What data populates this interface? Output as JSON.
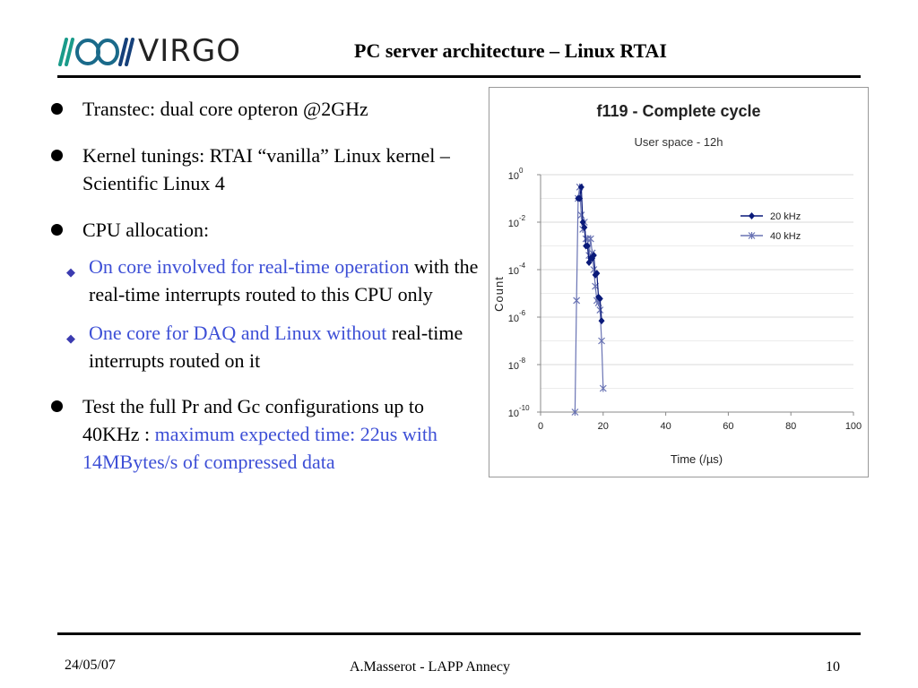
{
  "header": {
    "logo_text": "VIRGO",
    "title": "PC server architecture – Linux RTAI"
  },
  "bullets": {
    "b1": "Transtec: dual core opteron @2GHz",
    "b2": "Kernel tunings: RTAI “vanilla” Linux kernel – Scientific Linux 4",
    "b3": "CPU allocation:",
    "b3_sub1_blue": "On core involved for real-time operation",
    "b3_sub1_rest": " with the real-time interrupts routed to this CPU only",
    "b3_sub2_blue": "One core for DAQ and Linux without",
    "b3_sub2_rest": " real-time interrupts routed on it",
    "b4_black": "Test the full Pr and Gc configurations up to 40KHz : ",
    "b4_blue": "maximum expected time: 22us with 14MBytes/s of compressed data"
  },
  "footer": {
    "date": "24/05/07",
    "author": "A.Masserot - LAPP Annecy",
    "page": "10"
  },
  "colors": {
    "accent_text": "#3d4fd6",
    "series_20khz": "#0a1a7a",
    "series_40khz": "#6a74b4"
  },
  "chart_data": {
    "type": "line",
    "title": "f119 - Complete cycle",
    "subtitle": "User space - 12h",
    "xlabel": "Time (/µs)",
    "ylabel": "Count",
    "xlim": [
      0,
      100
    ],
    "ylim_log10": [
      -10,
      0
    ],
    "y_scale": "log",
    "grid": true,
    "legend_position": "top-right",
    "x_ticks": [
      "0",
      "20",
      "40",
      "60",
      "80",
      "100"
    ],
    "y_ticks": [
      {
        "base": "10",
        "exp": "0"
      },
      {
        "base": "10",
        "exp": "-2"
      },
      {
        "base": "10",
        "exp": "-4"
      },
      {
        "base": "10",
        "exp": "-6"
      },
      {
        "base": "10",
        "exp": "-8"
      },
      {
        "base": "10",
        "exp": "-10"
      }
    ],
    "series": [
      {
        "name": "20 kHz",
        "marker": "diamond",
        "x": [
          12,
          12.5,
          13,
          13.5,
          14,
          14.5,
          15,
          15.5,
          16,
          16.5,
          17,
          17.5,
          18,
          18.5,
          19,
          19.5
        ],
        "y": [
          0.1,
          0.1,
          0.3,
          0.01,
          0.006,
          0.001,
          0.001,
          0.0002,
          0.0003,
          0.0003,
          0.0004,
          6e-05,
          7e-05,
          7e-06,
          6e-06,
          7e-07
        ]
      },
      {
        "name": "40 kHz",
        "marker": "x",
        "x": [
          11,
          11.5,
          12,
          12.5,
          13,
          13.5,
          14,
          14.5,
          15,
          15.5,
          16,
          16.5,
          17,
          17.5,
          18,
          18.5,
          19,
          19.5,
          20
        ],
        "y": [
          1e-10,
          5e-06,
          0.1,
          0.3,
          0.02,
          0.005,
          0.01,
          0.002,
          0.002,
          0.0004,
          0.002,
          0.0005,
          0.0001,
          2e-05,
          5e-06,
          4e-06,
          2e-06,
          1e-07,
          1e-09
        ]
      }
    ]
  }
}
